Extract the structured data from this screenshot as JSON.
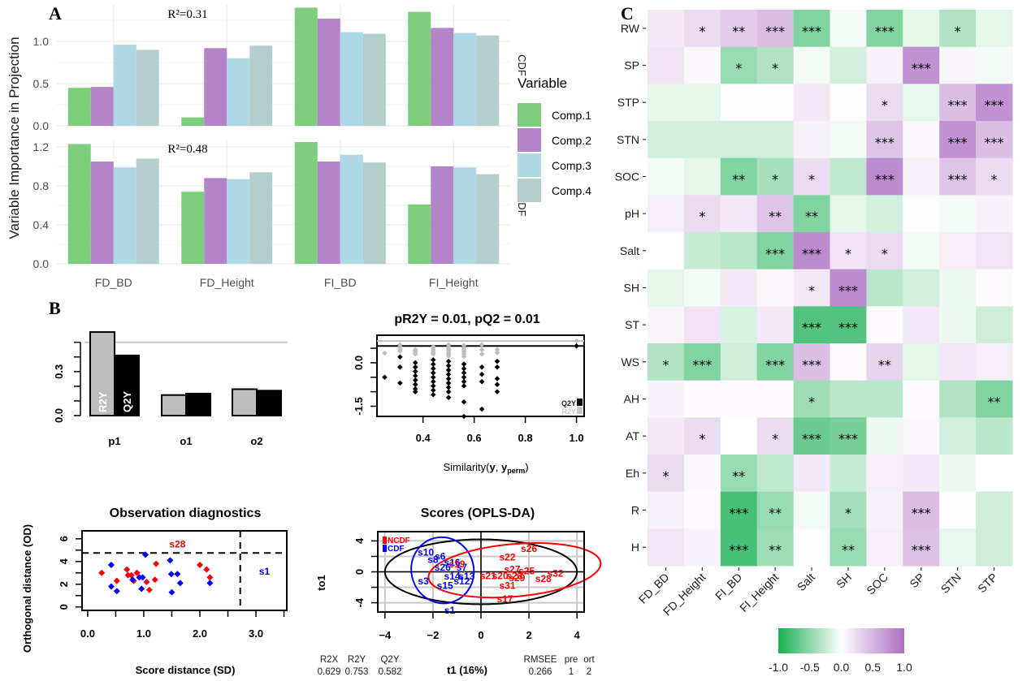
{
  "panels": {
    "a": "A",
    "b": "B",
    "c": "C"
  },
  "chart_data": [
    {
      "id": "vip-bars",
      "type": "bar",
      "title": "",
      "ylabel": "Variable Importance in Projection",
      "xlabel": "",
      "categories": [
        "FD_BD",
        "FD_Height",
        "FI_BD",
        "FI_Height"
      ],
      "legend": {
        "title": "Variable",
        "position": "right",
        "entries": [
          {
            "name": "Comp.1",
            "color": "#7ccd7c"
          },
          {
            "name": "Comp.2",
            "color": "#b384c9"
          },
          {
            "name": "Comp.3",
            "color": "#add8e6"
          },
          {
            "name": "Comp.4",
            "color": "#b4cdcd"
          }
        ]
      },
      "facets": [
        {
          "name": "CDF",
          "annotation": "R²=0.31",
          "ylim": [
            0,
            1.45
          ],
          "yticks": [
            "0.0",
            "0.5",
            "1.0"
          ],
          "ytick_values": [
            0,
            0.5,
            1.0
          ],
          "series": [
            {
              "name": "Comp.1",
              "values": [
                0.45,
                0.1,
                1.4,
                1.35
              ]
            },
            {
              "name": "Comp.2",
              "values": [
                0.46,
                0.92,
                1.27,
                1.16
              ]
            },
            {
              "name": "Comp.3",
              "values": [
                0.96,
                0.8,
                1.11,
                1.1
              ]
            },
            {
              "name": "Comp.4",
              "values": [
                0.9,
                0.95,
                1.09,
                1.07
              ]
            }
          ]
        },
        {
          "name": "NCDF",
          "annotation": "R²=0.48",
          "ylim": [
            0,
            1.35
          ],
          "yticks": [
            "0.0",
            "0.4",
            "0.8",
            "1.2"
          ],
          "ytick_values": [
            0,
            0.4,
            0.8,
            1.2
          ],
          "series": [
            {
              "name": "Comp.1",
              "values": [
                1.23,
                0.74,
                1.25,
                0.61
              ]
            },
            {
              "name": "Comp.2",
              "values": [
                1.05,
                0.88,
                1.05,
                1.0
              ]
            },
            {
              "name": "Comp.3",
              "values": [
                0.99,
                0.87,
                1.12,
                0.99
              ]
            },
            {
              "name": "Comp.4",
              "values": [
                1.08,
                0.94,
                1.04,
                0.92
              ]
            }
          ]
        }
      ]
    },
    {
      "id": "model-overview",
      "type": "bar",
      "categories": [
        "p1",
        "o1",
        "o2"
      ],
      "series": [
        {
          "name": "R2Y",
          "color": "#bebebe",
          "values": [
            0.57,
            0.14,
            0.18
          ]
        },
        {
          "name": "Q2Y",
          "color": "#000000",
          "values": [
            0.41,
            0.15,
            0.17
          ]
        }
      ],
      "yticks": [
        "0.0",
        "0.3"
      ],
      "ytick_values": [
        0,
        0.1,
        0.2,
        0.3,
        0.4,
        0.5
      ],
      "reference_line": 0.5,
      "ylim": [
        0,
        0.6
      ]
    },
    {
      "id": "permutation",
      "type": "scatter",
      "title": "pR2Y = 0.01, pQ2 = 0.01",
      "xlabel": "Similarity(y, y",
      "xlabel_sub": "perm",
      "xlabel_end": ")",
      "xticks": [
        "0.4",
        "0.6",
        "0.8",
        "1.0"
      ],
      "xtick_values": [
        0.4,
        0.6,
        0.8,
        1.0
      ],
      "yticks": [
        "0.0",
        "-1.5"
      ],
      "ytick_values": [
        0.5,
        0,
        -0.5,
        -1,
        -1.5
      ],
      "xlim": [
        0.22,
        1.03
      ],
      "ylim": [
        -1.85,
        0.95
      ],
      "legend": [
        {
          "name": "Q2Y",
          "color": "#000000"
        },
        {
          "name": "R2Y",
          "color": "#bebebe"
        }
      ],
      "r2y_line": 0.75,
      "q2y_line": 0.58,
      "columns": [
        {
          "x": 0.25,
          "r2y": [
            0.33
          ],
          "q2y": [
            -0.5
          ]
        },
        {
          "x": 0.31,
          "r2y": [
            0.62,
            0.55,
            0.47,
            0.4
          ],
          "q2y": [
            0.2,
            -0.15,
            -0.7
          ]
        },
        {
          "x": 0.37,
          "r2y": [
            0.45,
            0.4,
            0.35,
            0.3
          ],
          "q2y": [
            0,
            -0.15,
            -0.3,
            -0.45,
            -0.6,
            -0.75,
            -0.9,
            -1.0
          ]
        },
        {
          "x": 0.44,
          "r2y": [
            0.55,
            0.48,
            0.42,
            0.36,
            0.3
          ],
          "q2y": [
            0.1,
            -0.05,
            -0.2,
            -0.35,
            -0.5,
            -0.65,
            -0.8,
            -0.95,
            -1.1
          ]
        },
        {
          "x": 0.5,
          "r2y": [
            0.62,
            0.55,
            0.48,
            0.42,
            0.36,
            0.3,
            0.24
          ],
          "q2y": [
            0.05,
            -0.1,
            -0.25,
            -0.4,
            -0.55,
            -0.7,
            -0.85,
            -1.0,
            -1.2
          ]
        },
        {
          "x": 0.56,
          "r2y": [
            0.6,
            0.52,
            0.45,
            0.38,
            0.3,
            0.22
          ],
          "q2y": [
            -0.05,
            -0.2,
            -0.35,
            -0.5,
            -0.65,
            -0.8,
            -1.35,
            -1.85
          ]
        },
        {
          "x": 0.63,
          "r2y": [
            0.62,
            0.45,
            0.3
          ],
          "q2y": [
            -0.15,
            -0.4,
            -0.65,
            -1.6
          ]
        },
        {
          "x": 0.69,
          "r2y": [
            0.45,
            0.35
          ],
          "q2y": [
            0.05,
            -0.15,
            -0.55,
            -0.75,
            -1.0
          ]
        },
        {
          "x": 1.0,
          "r2y": [
            0.75
          ],
          "q2y": [
            0.58
          ]
        }
      ]
    },
    {
      "id": "observation-diagnostics",
      "type": "scatter",
      "title": "Observation diagnostics",
      "xlabel": "Score distance (SD)",
      "ylabel": "Orthogonal distance (OD)",
      "xticks": [
        "0.0",
        "1.0",
        "2.0",
        "3.0"
      ],
      "xtick_values": [
        0,
        0.5,
        1.0,
        1.5,
        2.0,
        2.5,
        3.0,
        3.5
      ],
      "xtick_label_values": [
        0,
        1.0,
        2.0,
        3.0
      ],
      "yticks": [
        "0",
        "2",
        "4",
        "6"
      ],
      "ytick_values": [
        0,
        1,
        2,
        3,
        4,
        5,
        6
      ],
      "ytick_label_values": [
        0,
        2,
        4,
        6
      ],
      "xlim": [
        -0.1,
        3.55
      ],
      "ylim": [
        -0.3,
        6.7
      ],
      "sd_threshold": 2.72,
      "od_threshold": 4.75,
      "labels": [
        {
          "text": "s28",
          "x": 1.6,
          "y": 5.6,
          "color": "#ff0000"
        },
        {
          "text": "s1",
          "x": 3.15,
          "y": 3.2,
          "color": "#0000ff"
        }
      ],
      "points_red": [
        [
          0.25,
          3.0
        ],
        [
          0.52,
          2.3
        ],
        [
          0.7,
          3.3
        ],
        [
          0.72,
          2.8
        ],
        [
          0.78,
          2.8
        ],
        [
          0.82,
          2.3
        ],
        [
          0.88,
          3.0
        ],
        [
          1.05,
          2.2
        ],
        [
          1.1,
          1.5
        ],
        [
          1.2,
          2.4
        ],
        [
          1.22,
          3.8
        ],
        [
          2.0,
          3.7
        ],
        [
          2.12,
          3.3
        ],
        [
          2.18,
          2.6
        ]
      ],
      "points_blue": [
        [
          0.42,
          3.7
        ],
        [
          0.42,
          1.8
        ],
        [
          0.52,
          1.4
        ],
        [
          0.8,
          2.4
        ],
        [
          0.92,
          2.6
        ],
        [
          0.98,
          2.6
        ],
        [
          0.96,
          1.6
        ],
        [
          1.03,
          4.6
        ],
        [
          1.47,
          4.1
        ],
        [
          1.49,
          2.9
        ],
        [
          1.5,
          1.3
        ],
        [
          1.6,
          2.9
        ],
        [
          1.65,
          2.1
        ],
        [
          2.18,
          2.1
        ]
      ]
    },
    {
      "id": "scores-opls-da",
      "type": "scatter",
      "title": "Scores (OPLS-DA)",
      "xlabel": "t1 (16%)",
      "ylabel": "to1",
      "xticks": [
        "-4",
        "-2",
        "0",
        "2",
        "4"
      ],
      "xtick_values": [
        -4,
        -2,
        0,
        2,
        4
      ],
      "yticks": [
        "-4",
        "0",
        "4"
      ],
      "ytick_values": [
        -4,
        -2,
        0,
        2,
        4
      ],
      "ytick_label_values": [
        -4,
        0,
        4
      ],
      "xlim": [
        -4.3,
        4.3
      ],
      "ylim": [
        -5.2,
        5.2
      ],
      "legend": [
        {
          "name": "NCDF",
          "color": "#ff0000"
        },
        {
          "name": "CDF",
          "color": "#0000ff"
        }
      ],
      "hotelling": {
        "cx": 0,
        "cy": 0,
        "rx": 4.0,
        "ry": 4.2
      },
      "ellipse_cdf": {
        "cx": -1.6,
        "cy": 0.2,
        "rx": 1.3,
        "ry": 4.3,
        "rotation": -15
      },
      "ellipse_ncdf": {
        "cx": 1.4,
        "cy": 0.2,
        "rx": 3.6,
        "ry": 3.4,
        "rotation": -5
      },
      "labels_cdf": [
        {
          "text": "s10",
          "x": -2.3,
          "y": 2.5
        },
        {
          "text": "s6",
          "x": -1.7,
          "y": 2.0
        },
        {
          "text": "s8",
          "x": -2.0,
          "y": 1.6
        },
        {
          "text": "s16",
          "x": -1.2,
          "y": 1.2
        },
        {
          "text": "s26",
          "x": -1.6,
          "y": 0.6
        },
        {
          "text": "s7",
          "x": -0.8,
          "y": 0.6
        },
        {
          "text": "s3",
          "x": -2.4,
          "y": -1.2
        },
        {
          "text": "s14",
          "x": -1.2,
          "y": -0.6
        },
        {
          "text": "s13",
          "x": -0.6,
          "y": -0.6
        },
        {
          "text": "s12",
          "x": -0.8,
          "y": -1.2
        },
        {
          "text": "s15",
          "x": -1.5,
          "y": -1.8
        },
        {
          "text": "s1",
          "x": -1.3,
          "y": -5.0
        }
      ],
      "labels_ncdf": [
        {
          "text": "s19",
          "x": -1.0,
          "y": 1.0
        },
        {
          "text": "s22",
          "x": 1.1,
          "y": 1.9
        },
        {
          "text": "s26",
          "x": 2.0,
          "y": 3.0
        },
        {
          "text": "s21",
          "x": 0.3,
          "y": -0.5
        },
        {
          "text": "s20",
          "x": 0.8,
          "y": -0.5
        },
        {
          "text": "s27",
          "x": 1.3,
          "y": 0.3
        },
        {
          "text": "s23",
          "x": 1.4,
          "y": -0.5
        },
        {
          "text": "s29",
          "x": 1.5,
          "y": -0.8
        },
        {
          "text": "s25",
          "x": 1.9,
          "y": 0.1
        },
        {
          "text": "s28",
          "x": 2.6,
          "y": -0.9
        },
        {
          "text": "s32",
          "x": 3.1,
          "y": -0.2
        },
        {
          "text": "s31",
          "x": 1.1,
          "y": -1.8
        },
        {
          "text": "s17",
          "x": 1.0,
          "y": -3.5
        }
      ],
      "stats": {
        "headers": [
          "R2X",
          "R2Y",
          "Q2Y",
          "RMSEE",
          "pre",
          "ort"
        ],
        "values": [
          "0.629",
          "0.753",
          "0.582",
          "0.266",
          "1",
          "2"
        ]
      }
    },
    {
      "id": "correlation-heatmap",
      "type": "heatmap",
      "title": "",
      "x": [
        "FD_BD",
        "FD_Height",
        "FI_BD",
        "FI_Height",
        "Salt",
        "SH",
        "SOC",
        "SP",
        "STN",
        "STP"
      ],
      "y": [
        "RW",
        "SP",
        "STP",
        "STN",
        "SOC",
        "pH",
        "Salt",
        "SH",
        "ST",
        "WS",
        "AH",
        "AT",
        "Eh",
        "R",
        "H"
      ],
      "colorbar": {
        "min": -1.0,
        "max": 1.0,
        "ticks": [
          "-1.0",
          "-0.5",
          "0.0",
          "0.5",
          "1.0"
        ],
        "low_color": "#1aaf54",
        "mid_color": "#ffffff",
        "high_color": "#ac6ec3",
        "position": "bottom"
      },
      "values": [
        [
          0.15,
          0.25,
          0.35,
          0.45,
          -0.55,
          -0.05,
          -0.55,
          -0.12,
          -0.35,
          -0.12
        ],
        [
          0.2,
          0.05,
          -0.45,
          -0.35,
          -0.05,
          -0.2,
          0.1,
          0.75,
          0.07,
          -0.05
        ],
        [
          -0.12,
          -0.12,
          0.02,
          0.02,
          0.15,
          0.02,
          0.25,
          -0.1,
          0.45,
          0.75
        ],
        [
          -0.2,
          -0.2,
          -0.2,
          -0.2,
          0.1,
          -0.05,
          0.4,
          0.05,
          0.75,
          0.45
        ],
        [
          -0.05,
          -0.12,
          -0.55,
          -0.38,
          0.25,
          -0.28,
          0.8,
          0.1,
          0.4,
          0.25
        ],
        [
          0.12,
          0.25,
          0.15,
          0.4,
          -0.55,
          -0.12,
          -0.2,
          0.02,
          -0.05,
          0.08
        ],
        [
          0.0,
          -0.25,
          -0.3,
          -0.55,
          0.8,
          0.2,
          0.25,
          -0.05,
          0.12,
          0.18
        ],
        [
          -0.12,
          -0.05,
          0.15,
          0.05,
          0.15,
          0.8,
          -0.3,
          -0.2,
          -0.08,
          0.03
        ],
        [
          0.07,
          0.2,
          -0.18,
          0.15,
          -0.75,
          -0.75,
          0.03,
          0.15,
          -0.07,
          -0.22
        ],
        [
          -0.35,
          -0.55,
          -0.22,
          -0.55,
          0.45,
          0.03,
          0.3,
          -0.12,
          0.15,
          0.12
        ],
        [
          0.08,
          0.03,
          0.03,
          0.03,
          -0.42,
          -0.3,
          -0.3,
          0.03,
          -0.35,
          -0.55
        ],
        [
          0.15,
          0.25,
          0.0,
          0.25,
          -0.65,
          -0.6,
          -0.07,
          0.05,
          -0.2,
          -0.3
        ],
        [
          0.25,
          0.05,
          -0.45,
          -0.28,
          0.15,
          -0.25,
          0.12,
          0.15,
          -0.08,
          0.0
        ],
        [
          0.1,
          0.03,
          -0.8,
          -0.45,
          -0.05,
          -0.4,
          0.1,
          0.45,
          0.02,
          -0.22
        ],
        [
          0.18,
          0.08,
          -0.8,
          -0.42,
          0.02,
          -0.45,
          0.12,
          0.42,
          -0.1,
          -0.22
        ]
      ],
      "significance": [
        [
          "",
          "*",
          "**",
          "***",
          "***",
          "",
          "***",
          "",
          "*",
          ""
        ],
        [
          "",
          "",
          "*",
          "*",
          "",
          "",
          "",
          "***",
          "",
          ""
        ],
        [
          "",
          "",
          "",
          "",
          "",
          "",
          "*",
          "",
          "***",
          "***"
        ],
        [
          "",
          "",
          "",
          "",
          "",
          "",
          "***",
          "",
          "***",
          "***"
        ],
        [
          "",
          "",
          "**",
          "*",
          "*",
          "",
          "***",
          "",
          "***",
          "*"
        ],
        [
          "",
          "*",
          "",
          "**",
          "**",
          "",
          "",
          "",
          "",
          ""
        ],
        [
          "",
          "",
          "",
          "***",
          "***",
          "*",
          "*",
          "",
          "",
          ""
        ],
        [
          "",
          "",
          "",
          "",
          "*",
          "***",
          "",
          "",
          "",
          ""
        ],
        [
          "",
          "",
          "",
          "",
          "***",
          "***",
          "",
          "",
          "",
          ""
        ],
        [
          "*",
          "***",
          "",
          "***",
          "***",
          "",
          "**",
          "",
          "",
          ""
        ],
        [
          "",
          "",
          "",
          "",
          "*",
          "",
          "",
          "",
          "",
          "**"
        ],
        [
          "",
          "*",
          "",
          "*",
          "***",
          "***",
          "",
          "",
          "",
          ""
        ],
        [
          "*",
          "",
          "**",
          "",
          "",
          "",
          "",
          "",
          "",
          ""
        ],
        [
          "",
          "",
          "***",
          "**",
          "",
          "*",
          "",
          "***",
          "",
          ""
        ],
        [
          "",
          "",
          "***",
          "**",
          "",
          "**",
          "",
          "***",
          "",
          ""
        ]
      ]
    }
  ]
}
